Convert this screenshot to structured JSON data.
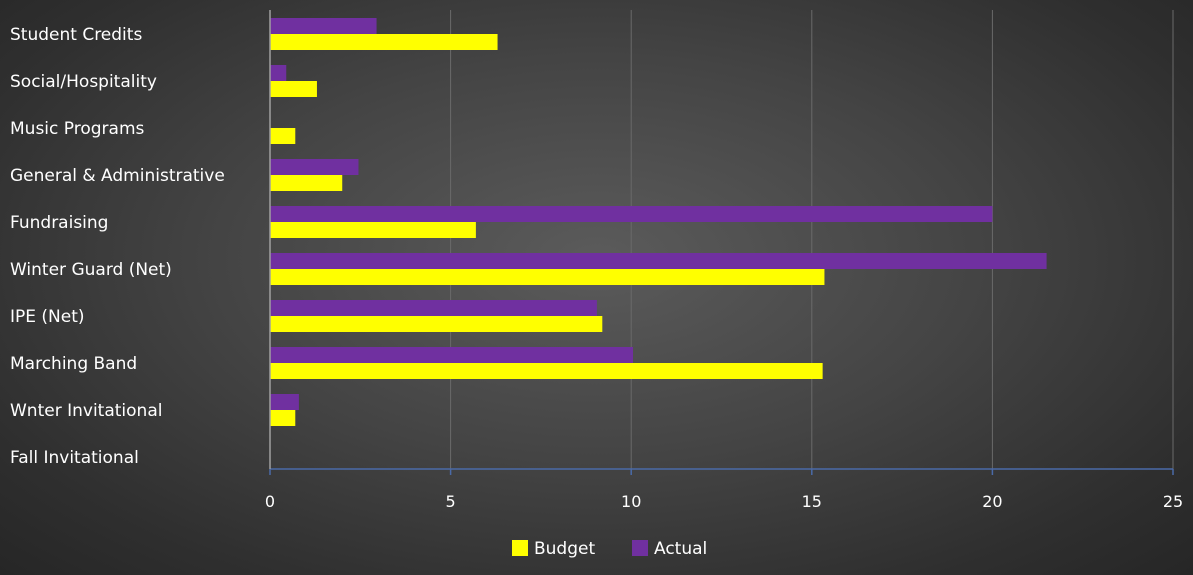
{
  "chart_data": {
    "type": "bar",
    "orientation": "horizontal",
    "categories": [
      "Student Credits",
      "Social/Hospitality",
      "Music Programs",
      "General & Administrative",
      "Fundraising",
      "Winter Guard (Net)",
      "IPE (Net)",
      "Marching Band",
      "Wnter Invitational",
      "Fall Invitational"
    ],
    "series": [
      {
        "name": "Actual",
        "color": "#7030a0",
        "values": [
          2.95,
          0.45,
          0,
          2.45,
          20.0,
          21.5,
          9.05,
          10.05,
          0.8,
          0
        ]
      },
      {
        "name": "Budget",
        "color": "#ffff00",
        "values": [
          6.3,
          1.3,
          0.7,
          2.0,
          5.7,
          15.35,
          9.2,
          15.3,
          0.7,
          0
        ]
      }
    ],
    "xlim": [
      0,
      25
    ],
    "xticks": [
      0,
      5,
      10,
      15,
      20,
      25
    ],
    "grid": true,
    "legend": {
      "position": "bottom",
      "entries": [
        {
          "name": "Budget",
          "color": "#ffff00"
        },
        {
          "name": "Actual",
          "color": "#7030a0"
        }
      ]
    }
  }
}
